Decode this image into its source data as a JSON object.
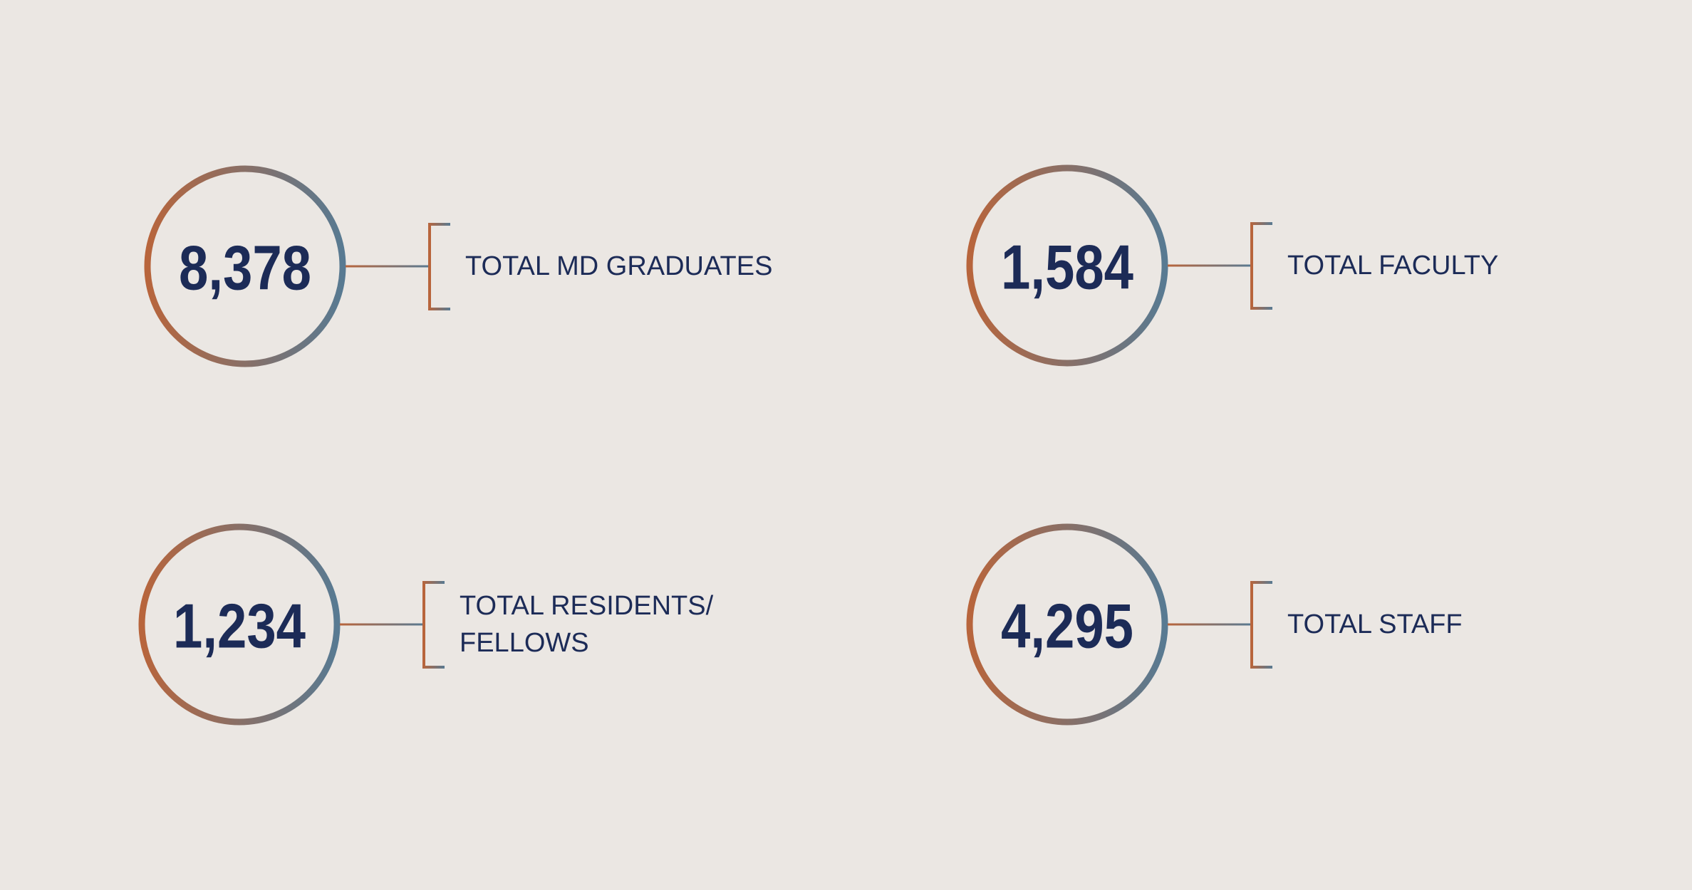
{
  "stats": [
    {
      "value": "8,378",
      "label_lines": [
        "TOTAL MD GRADUATES"
      ]
    },
    {
      "value": "1,584",
      "label_lines": [
        "TOTAL FACULTY"
      ]
    },
    {
      "value": "1,234",
      "label_lines": [
        "TOTAL RESIDENTS/",
        "FELLOWS"
      ]
    },
    {
      "value": "4,295",
      "label_lines": [
        "TOTAL STAFF"
      ]
    }
  ]
}
